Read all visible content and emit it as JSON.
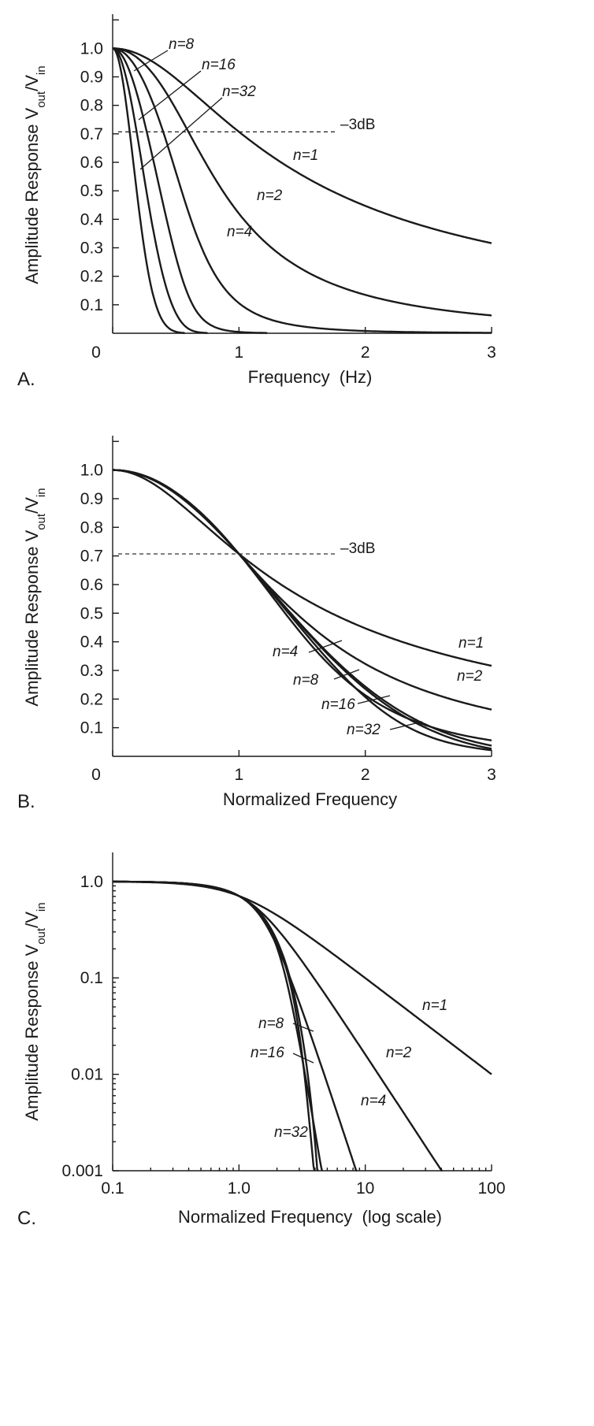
{
  "chart_data": [
    {
      "type": "line",
      "panel": "A.",
      "xlabel": "Frequency  (Hz)",
      "ylabel": "Amplitude Response V_out/V_in",
      "ylabel_parts": {
        "main": "Amplitude Response V",
        "sub1": "out",
        "slash": "/V",
        "sub2": "in"
      },
      "xlim": [
        0,
        3
      ],
      "ylim": [
        0,
        1.12
      ],
      "x_ticks": [
        0,
        1,
        2,
        3
      ],
      "x_tick_labels": [
        "0",
        "1",
        "2",
        "3"
      ],
      "y_ticks": [
        0.1,
        0.2,
        0.3,
        0.4,
        0.5,
        0.6,
        0.7,
        0.8,
        0.9,
        1.0
      ],
      "y_tick_labels": [
        "0.1",
        "0.2",
        "0.3",
        "0.4",
        "0.5",
        "0.6",
        "0.7",
        "0.8",
        "0.9",
        "1.0"
      ],
      "reference_line": {
        "y": 0.707,
        "label": "–3dB"
      },
      "series": [
        {
          "name": "n=1",
          "order": 1,
          "cutoff": 1.0
        },
        {
          "name": "n=2",
          "order": 2,
          "cutoff": 0.6
        },
        {
          "name": "n=4",
          "order": 4,
          "cutoff": 0.4
        },
        {
          "name": "n=8",
          "order": 8,
          "cutoff": 0.27
        },
        {
          "name": "n=16",
          "order": 16,
          "cutoff": 0.19
        },
        {
          "name": "n=32",
          "order": 32,
          "cutoff": 0.135
        }
      ],
      "annotations": [
        "n=8",
        "n=16",
        "n=32",
        "n=1",
        "n=2",
        "n=4"
      ]
    },
    {
      "type": "line",
      "panel": "B.",
      "xlabel": "Normalized Frequency",
      "ylabel": "Amplitude Response V_out/V_in",
      "ylabel_parts": {
        "main": "Amplitude Response V",
        "sub1": "out",
        "slash": "/V",
        "sub2": "in"
      },
      "xlim": [
        0,
        3
      ],
      "ylim": [
        0,
        1.12
      ],
      "x_ticks": [
        0,
        1,
        2,
        3
      ],
      "x_tick_labels": [
        "0",
        "1",
        "2",
        "3"
      ],
      "y_ticks": [
        0.1,
        0.2,
        0.3,
        0.4,
        0.5,
        0.6,
        0.7,
        0.8,
        0.9,
        1.0
      ],
      "y_tick_labels": [
        "0.1",
        "0.2",
        "0.3",
        "0.4",
        "0.5",
        "0.6",
        "0.7",
        "0.8",
        "0.9",
        "1.0"
      ],
      "reference_line": {
        "y": 0.707,
        "label": "–3dB"
      },
      "series": [
        {
          "name": "n=1",
          "order": 1,
          "cutoff": 1.0
        },
        {
          "name": "n=2",
          "order": 2,
          "cutoff": 1.0
        },
        {
          "name": "n=4",
          "order": 4,
          "cutoff": 1.0
        },
        {
          "name": "n=8",
          "order": 8,
          "cutoff": 1.0
        },
        {
          "name": "n=16",
          "order": 16,
          "cutoff": 1.0
        },
        {
          "name": "n=32",
          "order": 32,
          "cutoff": 1.0
        }
      ],
      "annotations": [
        "n=1",
        "n=2",
        "n=4",
        "n=8",
        "n=16",
        "n=32"
      ]
    },
    {
      "type": "line",
      "panel": "C.",
      "xlabel": "Normalized Frequency  (log scale)",
      "ylabel": "Amplitude Response V_out/V_in",
      "ylabel_parts": {
        "main": "Amplitude Response V",
        "sub1": "out",
        "slash": "/V",
        "sub2": "in"
      },
      "x_scale": "log",
      "y_scale": "log",
      "xlim": [
        0.1,
        100
      ],
      "ylim": [
        0.001,
        2
      ],
      "x_ticks": [
        0.1,
        1,
        10,
        100
      ],
      "x_tick_labels": [
        "0.1",
        "1.0",
        "10",
        "100"
      ],
      "y_ticks": [
        0.001,
        0.01,
        0.1,
        1
      ],
      "y_tick_labels": [
        "0.001",
        "0.01",
        "0.1",
        "1.0"
      ],
      "series": [
        {
          "name": "n=1",
          "order": 1,
          "cutoff": 1.0
        },
        {
          "name": "n=2",
          "order": 2,
          "cutoff": 1.0
        },
        {
          "name": "n=4",
          "order": 4,
          "cutoff": 1.0
        },
        {
          "name": "n=8",
          "order": 8,
          "cutoff": 1.0
        },
        {
          "name": "n=16",
          "order": 16,
          "cutoff": 1.0
        },
        {
          "name": "n=32",
          "order": 32,
          "cutoff": 1.0
        }
      ],
      "annotations": [
        "n=1",
        "n=2",
        "n=4",
        "n=8",
        "n=16",
        "n=32"
      ]
    }
  ]
}
